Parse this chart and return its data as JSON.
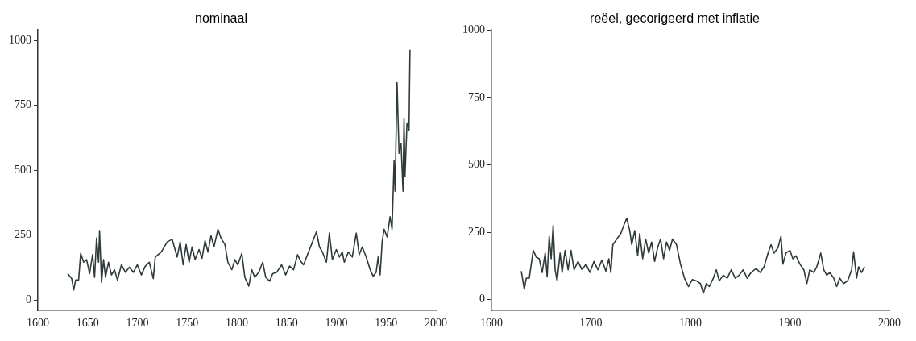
{
  "chart_data": [
    {
      "type": "line",
      "title": "nominaal",
      "xlim": [
        1600,
        2000
      ],
      "xticks": [
        1600,
        1650,
        1700,
        1750,
        1800,
        1850,
        1900,
        1950,
        2000
      ],
      "ylim": [
        -40,
        1040
      ],
      "yticks": [
        0,
        250,
        500,
        750,
        1000
      ],
      "grid": false,
      "legend": false,
      "marker": "none",
      "line_style": "solid",
      "series": [
        {
          "color": "#2f3a3a",
          "x": [
            1630,
            1634,
            1636,
            1638,
            1641,
            1643,
            1646,
            1649,
            1652,
            1655,
            1657,
            1659,
            1661,
            1662,
            1664,
            1666,
            1668,
            1671,
            1674,
            1677,
            1680,
            1684,
            1688,
            1692,
            1696,
            1700,
            1704,
            1708,
            1712,
            1716,
            1718,
            1724,
            1730,
            1735,
            1740,
            1743,
            1746,
            1749,
            1752,
            1755,
            1758,
            1762,
            1765,
            1768,
            1771,
            1774,
            1777,
            1781,
            1784,
            1788,
            1791,
            1795,
            1798,
            1801,
            1805,
            1808,
            1812,
            1815,
            1818,
            1822,
            1826,
            1829,
            1833,
            1836,
            1840,
            1845,
            1849,
            1853,
            1857,
            1861,
            1864,
            1867,
            1872,
            1876,
            1880,
            1883,
            1886,
            1890,
            1893,
            1896,
            1900,
            1903,
            1906,
            1908,
            1912,
            1916,
            1920,
            1923,
            1926,
            1930,
            1934,
            1937,
            1940,
            1942,
            1944,
            1946,
            1948,
            1951,
            1954,
            1956,
            1958,
            1959,
            1961,
            1963,
            1965,
            1967,
            1968,
            1969,
            1971,
            1973,
            1974
          ],
          "values": [
            102,
            83,
            39,
            78,
            78,
            180,
            146,
            156,
            102,
            175,
            88,
            239,
            146,
            268,
            68,
            156,
            88,
            146,
            97,
            117,
            78,
            136,
            107,
            127,
            107,
            136,
            97,
            131,
            146,
            83,
            166,
            185,
            224,
            234,
            166,
            224,
            136,
            214,
            146,
            205,
            156,
            195,
            161,
            229,
            185,
            248,
            205,
            273,
            239,
            214,
            146,
            117,
            156,
            136,
            180,
            88,
            54,
            117,
            88,
            107,
            146,
            88,
            73,
            102,
            107,
            136,
            97,
            131,
            117,
            175,
            151,
            136,
            185,
            224,
            263,
            205,
            185,
            146,
            258,
            156,
            195,
            166,
            185,
            146,
            185,
            166,
            258,
            175,
            205,
            166,
            117,
            92,
            107,
            166,
            97,
            224,
            273,
            243,
            321,
            273,
            536,
            419,
            837,
            565,
            604,
            419,
            701,
            477,
            682,
            653,
            964
          ]
        }
      ]
    },
    {
      "type": "line",
      "title": "reëel, gecorigeerd met inflatie",
      "xlim": [
        1600,
        2000
      ],
      "xticks": [
        1600,
        1700,
        1800,
        1900,
        2000
      ],
      "ylim": [
        -40,
        1000
      ],
      "yticks": [
        0,
        250,
        500,
        750,
        1000
      ],
      "grid": false,
      "legend": false,
      "marker": "none",
      "line_style": "solid",
      "series": [
        {
          "color": "#2f3a3a",
          "x": [
            1630,
            1633,
            1635,
            1638,
            1642,
            1645,
            1648,
            1651,
            1654,
            1656,
            1658,
            1660,
            1662,
            1664,
            1666,
            1669,
            1671,
            1674,
            1677,
            1680,
            1683,
            1687,
            1691,
            1695,
            1699,
            1703,
            1707,
            1711,
            1715,
            1718,
            1720,
            1722,
            1726,
            1730,
            1733,
            1736,
            1739,
            1741,
            1744,
            1747,
            1749,
            1752,
            1755,
            1758,
            1761,
            1764,
            1767,
            1770,
            1773,
            1776,
            1779,
            1782,
            1786,
            1790,
            1794,
            1798,
            1802,
            1806,
            1810,
            1813,
            1816,
            1819,
            1823,
            1826,
            1829,
            1833,
            1837,
            1841,
            1845,
            1849,
            1853,
            1857,
            1861,
            1866,
            1870,
            1874,
            1878,
            1881,
            1884,
            1888,
            1891,
            1893,
            1896,
            1900,
            1903,
            1906,
            1910,
            1914,
            1917,
            1920,
            1924,
            1927,
            1931,
            1934,
            1937,
            1940,
            1944,
            1947,
            1950,
            1954,
            1958,
            1962,
            1964,
            1967,
            1969,
            1972,
            1975
          ],
          "values": [
            106,
            39,
            80,
            80,
            183,
            158,
            152,
            101,
            173,
            85,
            235,
            152,
            276,
            111,
            70,
            173,
            101,
            183,
            111,
            183,
            111,
            142,
            111,
            132,
            101,
            142,
            111,
            147,
            106,
            152,
            101,
            204,
            225,
            245,
            276,
            302,
            256,
            204,
            256,
            163,
            245,
            152,
            225,
            173,
            214,
            142,
            193,
            225,
            152,
            214,
            183,
            225,
            204,
            132,
            80,
            49,
            75,
            70,
            60,
            24,
            60,
            49,
            80,
            111,
            70,
            91,
            80,
            111,
            80,
            91,
            111,
            80,
            101,
            116,
            101,
            122,
            173,
            204,
            173,
            193,
            235,
            132,
            173,
            183,
            152,
            163,
            132,
            111,
            60,
            111,
            101,
            122,
            173,
            111,
            91,
            101,
            80,
            49,
            80,
            60,
            70,
            111,
            178,
            80,
            122,
            101,
            122
          ]
        }
      ]
    }
  ]
}
